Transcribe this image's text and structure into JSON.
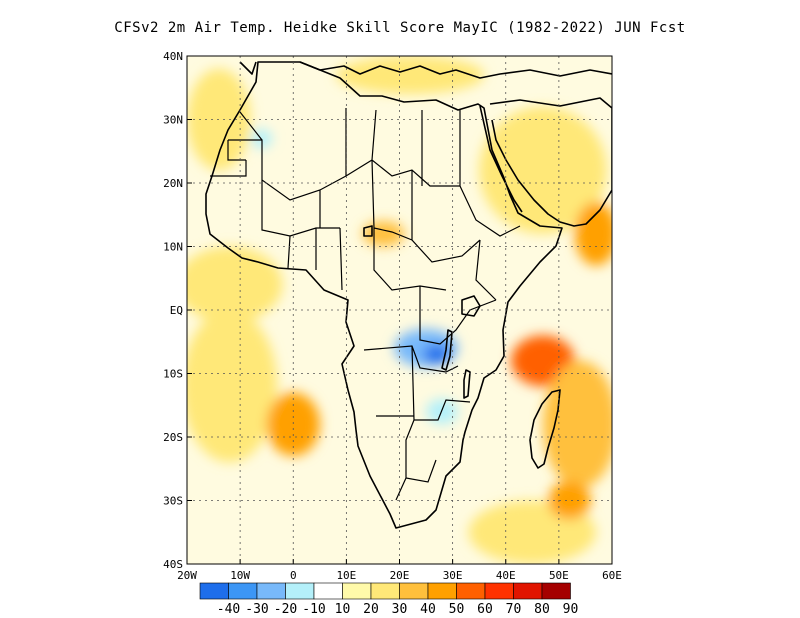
{
  "title": "CFSv2 2m Air Temp. Heidke Skill Score MayIC (1982-2022) JUN Fcst",
  "map": {
    "lon_range": [
      -20,
      60
    ],
    "lat_range": [
      -40,
      40
    ],
    "lat_ticks": [
      {
        "value": 40,
        "label": "40N"
      },
      {
        "value": 30,
        "label": "30N"
      },
      {
        "value": 20,
        "label": "20N"
      },
      {
        "value": 10,
        "label": "10N"
      },
      {
        "value": 0,
        "label": "EQ"
      },
      {
        "value": -10,
        "label": "10S"
      },
      {
        "value": -20,
        "label": "20S"
      },
      {
        "value": -30,
        "label": "30S"
      },
      {
        "value": -40,
        "label": "40S"
      }
    ],
    "lon_ticks": [
      {
        "value": -20,
        "label": "20W"
      },
      {
        "value": -10,
        "label": "10W"
      },
      {
        "value": 0,
        "label": "0"
      },
      {
        "value": 10,
        "label": "10E"
      },
      {
        "value": 20,
        "label": "20E"
      },
      {
        "value": 30,
        "label": "30E"
      },
      {
        "value": 40,
        "label": "40E"
      },
      {
        "value": 50,
        "label": "50E"
      },
      {
        "value": 60,
        "label": "60E"
      }
    ],
    "field_regions": [
      {
        "name": "gulf-of-guinea-warm",
        "lon": -12,
        "lat": 4,
        "rx": 10,
        "ry": 6,
        "class": "30"
      },
      {
        "name": "s-atlantic-warm",
        "lon": -12,
        "lat": -12,
        "rx": 9,
        "ry": 12,
        "class": "30"
      },
      {
        "name": "angola-coast-hot",
        "lon": 0,
        "lat": -18,
        "rx": 5,
        "ry": 5,
        "class": "50"
      },
      {
        "name": "n-atlantic-warm",
        "lon": -14,
        "lat": 30,
        "rx": 6,
        "ry": 8,
        "class": "30"
      },
      {
        "name": "arabia-warm",
        "lon": 47,
        "lat": 22,
        "rx": 12,
        "ry": 10,
        "class": "30"
      },
      {
        "name": "arabia-sea-hot",
        "lon": 57,
        "lat": 12,
        "rx": 4,
        "ry": 5,
        "class": "50"
      },
      {
        "name": "mozambique-hot",
        "lon": 47,
        "lat": -8,
        "rx": 6,
        "ry": 4,
        "class": "60"
      },
      {
        "name": "indian-ocean-warm",
        "lon": 54,
        "lat": -18,
        "rx": 7,
        "ry": 10,
        "class": "40"
      },
      {
        "name": "mediterranean-warm",
        "lon": 22,
        "lat": 37,
        "rx": 14,
        "ry": 3,
        "class": "30"
      },
      {
        "name": "s-ocean-warm",
        "lon": 45,
        "lat": -35,
        "rx": 12,
        "ry": 5,
        "class": "30"
      },
      {
        "name": "se-ocean-hot",
        "lon": 52,
        "lat": -30,
        "rx": 4,
        "ry": 3,
        "class": "50"
      },
      {
        "name": "sahel-warm",
        "lon": 17,
        "lat": 12,
        "rx": 4,
        "ry": 2,
        "class": "40"
      },
      {
        "name": "congo-cool",
        "lon": 25,
        "lat": -6,
        "rx": 6,
        "ry": 3,
        "class": "-20"
      },
      {
        "name": "congo-cold",
        "lon": 27,
        "lat": -7,
        "rx": 2.5,
        "ry": 1.5,
        "class": "-40"
      },
      {
        "name": "zambia-cool",
        "lon": 28,
        "lat": -16,
        "rx": 3,
        "ry": 2,
        "class": "-10"
      },
      {
        "name": "west-sahara-cool",
        "lon": -6,
        "lat": 27,
        "rx": 2,
        "ry": 1.5,
        "class": "-10"
      }
    ]
  },
  "colorbar": {
    "levels": [
      "-40",
      "-30",
      "-20",
      "-10",
      "10",
      "20",
      "30",
      "40",
      "50",
      "60",
      "70",
      "80",
      "90"
    ],
    "colors": [
      "#1e6eeb",
      "#3c96f5",
      "#78b9fa",
      "#b4f0fa",
      "#ffffff",
      "#fffaaa",
      "#ffe878",
      "#ffc03c",
      "#ffa000",
      "#ff6000",
      "#ff3200",
      "#e11400",
      "#a50000"
    ]
  }
}
